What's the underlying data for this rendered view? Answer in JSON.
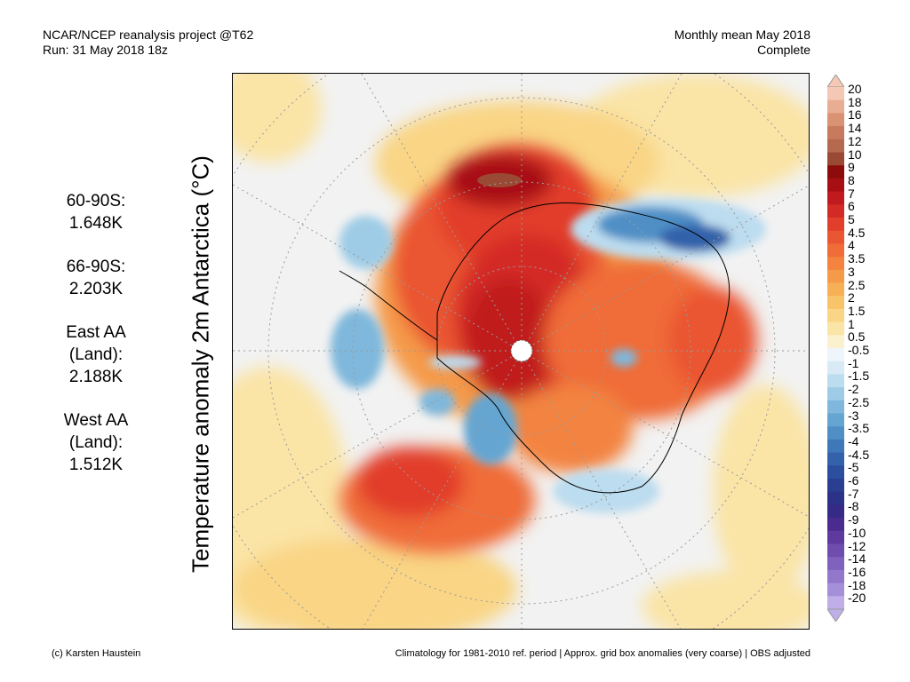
{
  "header": {
    "source": "NCAR/NCEP reanalysis project @T62",
    "run": "Run: 31 May 2018 18z",
    "period": "Monthly mean May 2018",
    "status": "Complete"
  },
  "axis_label": "Temperature anomaly 2m Antarctica (°C)",
  "stats": [
    {
      "label": "60-90S:",
      "value": "1.648K"
    },
    {
      "label": "66-90S:",
      "value": "2.203K"
    },
    {
      "label": "East AA\n(Land):",
      "value": "2.188K"
    },
    {
      "label": "West AA\n(Land):",
      "value": "1.512K"
    }
  ],
  "colorbar": {
    "labels": [
      "20",
      "18",
      "16",
      "14",
      "12",
      "10",
      "9",
      "8",
      "7",
      "6",
      "5",
      "4.5",
      "4",
      "3.5",
      "3",
      "2.5",
      "2",
      "1.5",
      "1",
      "0.5",
      "-0.5",
      "-1",
      "-1.5",
      "-2",
      "-2.5",
      "-3",
      "-3.5",
      "-4",
      "-4.5",
      "-5",
      "-6",
      "-7",
      "-8",
      "-9",
      "-10",
      "-12",
      "-14",
      "-16",
      "-18",
      "-20"
    ],
    "colors": [
      "#f4c8b4",
      "#e8ad93",
      "#d99274",
      "#c87a5e",
      "#b56a4f",
      "#9a4a34",
      "#8c0c0c",
      "#a80f14",
      "#c11a1e",
      "#d42a26",
      "#e23e2c",
      "#ea5532",
      "#f06c38",
      "#f3833f",
      "#f59a48",
      "#f7b055",
      "#f8c46a",
      "#f9d585",
      "#fae4a6",
      "#fbf1cf",
      "#eef5fb",
      "#d8eaf6",
      "#bcdcef",
      "#9ecce6",
      "#7fb8dc",
      "#65a5d2",
      "#4f8fc6",
      "#3f78b8",
      "#3362aa",
      "#2b4e9e",
      "#2a3f92",
      "#2d3289",
      "#362a86",
      "#4b2b8f",
      "#5e3a9e",
      "#6f4dae",
      "#8061bd",
      "#9277cb",
      "#a68fd9",
      "#bfaee7"
    ]
  },
  "footer": {
    "credit": "(c) Karsten Haustein",
    "note": "Climatology for 1981-2010 ref. period | Approx. grid box anomalies (very coarse) | OBS adjusted"
  }
}
